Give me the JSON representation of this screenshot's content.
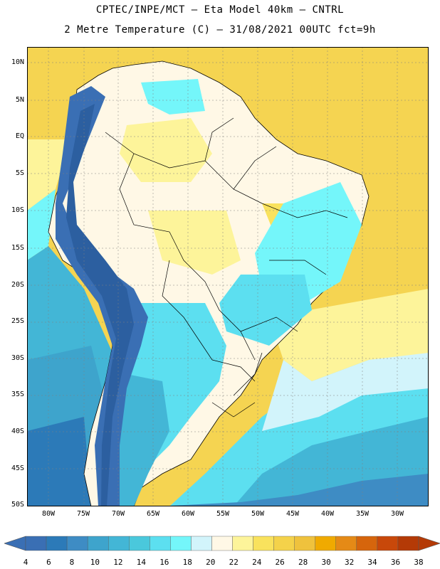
{
  "title": {
    "line1": "CPTEC/INPE/MCT  –  Eta Model 40km  –  CNTRL",
    "line2": "2 Metre Temperature (C) – 31/08/2021 00UTC fct=9h"
  },
  "map": {
    "lat_labels": [
      "10N",
      "5N",
      "EQ",
      "5S",
      "10S",
      "15S",
      "20S",
      "25S",
      "30S",
      "35S",
      "40S",
      "45S",
      "50S"
    ],
    "lon_labels": [
      "80W",
      "75W",
      "70W",
      "65W",
      "60W",
      "55W",
      "50W",
      "45W",
      "40W",
      "35W",
      "30W"
    ],
    "land_outline_color": "#000000",
    "grid_color": "#808080"
  },
  "colorbar": {
    "levels": [
      "4",
      "6",
      "8",
      "10",
      "12",
      "14",
      "16",
      "18",
      "20",
      "22",
      "24",
      "26",
      "28",
      "30",
      "32",
      "34",
      "36",
      "38"
    ],
    "colors": [
      "#3a6fb4",
      "#2c7ab8",
      "#3e8cc4",
      "#3ea4cc",
      "#43b6d6",
      "#4ac8dc",
      "#5cdff0",
      "#74f6fa",
      "#d2f4fb",
      "#fff8e6",
      "#fdf49a",
      "#f9e25d",
      "#f4d24a",
      "#efc23d",
      "#f0aa00",
      "#e58a16",
      "#d6650c",
      "#c8480a",
      "#b43a06"
    ],
    "low_arrow_color": "#3a6fb4",
    "high_arrow_color": "#b43a06"
  }
}
